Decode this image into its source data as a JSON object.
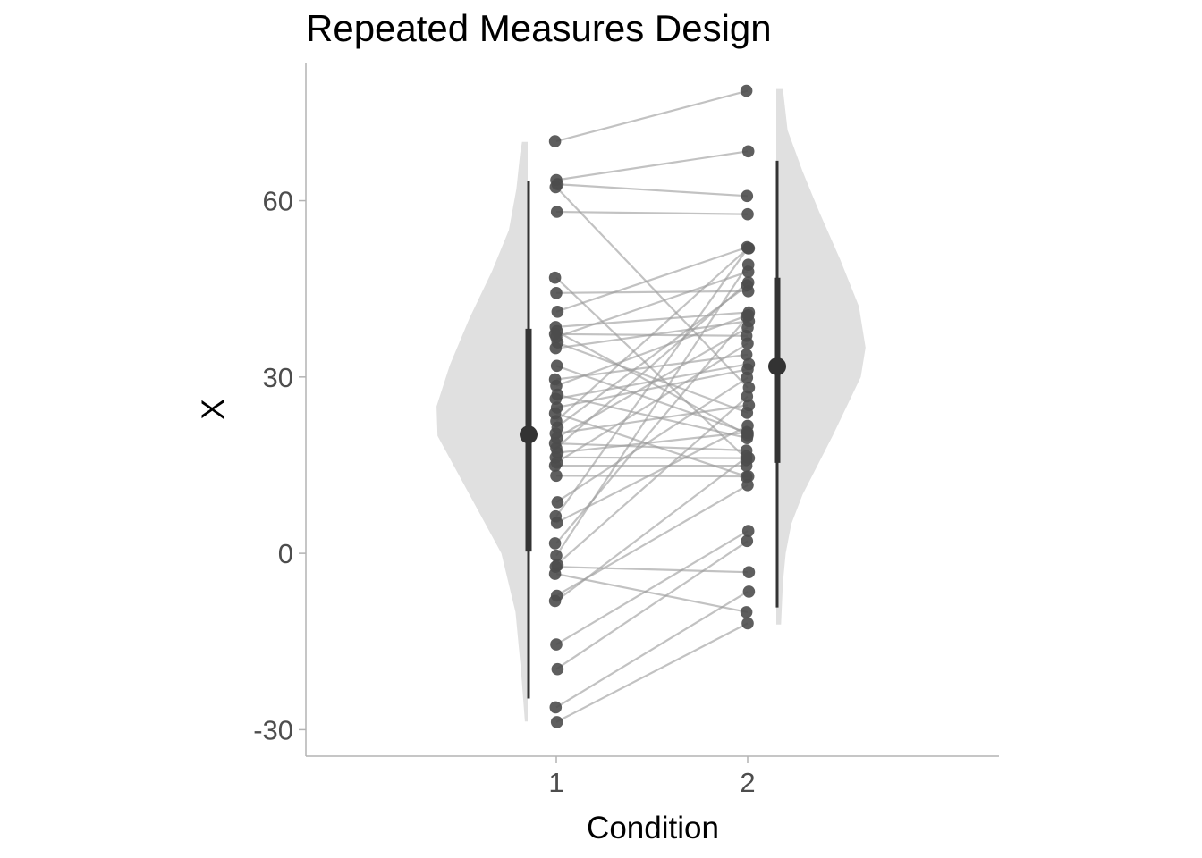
{
  "chart_data": {
    "type": "scatter",
    "subtype": "paired raincloud (half violin + boxplot + paired points)",
    "title": "Repeated Measures Design",
    "xlabel": "Condition",
    "ylabel": "X",
    "categories": [
      "1",
      "2"
    ],
    "x_tick_labels": [
      "1",
      "2"
    ],
    "y_ticks": [
      -30,
      0,
      30,
      60
    ],
    "y_tick_labels": [
      "-30",
      "0",
      "30",
      "60"
    ],
    "ylim": [
      -34.5,
      83.5
    ],
    "grid": false,
    "legend": "none",
    "colors": {
      "violin": "#e0e0e0",
      "point": "#4d4d4d",
      "line": "#9a9a9a",
      "summary": "#333333",
      "axis": "#b3b3b3"
    },
    "summary": [
      {
        "condition": "1",
        "mean": 20.2,
        "q1": 0.3,
        "q3": 38.2,
        "min": -24.7,
        "max": 63.4
      },
      {
        "condition": "2",
        "mean": 31.8,
        "q1": 15.4,
        "q3": 46.9,
        "min": -9.2,
        "max": 66.8
      }
    ],
    "violins": [
      {
        "condition": "1",
        "side": "left",
        "profile": [
          [
            -28.6,
            0.03
          ],
          [
            -20,
            0.07
          ],
          [
            -10,
            0.13
          ],
          [
            0,
            0.28
          ],
          [
            10,
            0.62
          ],
          [
            20,
            0.96
          ],
          [
            25,
            0.97
          ],
          [
            32,
            0.83
          ],
          [
            40,
            0.62
          ],
          [
            48,
            0.38
          ],
          [
            55,
            0.2
          ],
          [
            62,
            0.12
          ],
          [
            68,
            0.08
          ],
          [
            70,
            0.06
          ]
        ]
      },
      {
        "condition": "2",
        "side": "right",
        "profile": [
          [
            -12.1,
            0.05
          ],
          [
            -5,
            0.07
          ],
          [
            0,
            0.1
          ],
          [
            5,
            0.16
          ],
          [
            10,
            0.28
          ],
          [
            20,
            0.6
          ],
          [
            30,
            0.9
          ],
          [
            35,
            0.95
          ],
          [
            42,
            0.88
          ],
          [
            50,
            0.68
          ],
          [
            58,
            0.46
          ],
          [
            65,
            0.28
          ],
          [
            72,
            0.12
          ],
          [
            79,
            0.07
          ]
        ]
      }
    ],
    "pairs": [
      [
        70.1,
        78.7
      ],
      [
        63.5,
        68.4
      ],
      [
        62.8,
        60.8
      ],
      [
        62.3,
        28.2
      ],
      [
        58.1,
        57.7
      ],
      [
        46.9,
        15.9
      ],
      [
        44.3,
        44.6
      ],
      [
        41.1,
        52.1
      ],
      [
        38.5,
        41.0
      ],
      [
        37.8,
        20.1
      ],
      [
        37.3,
        37.0
      ],
      [
        36.8,
        47.9
      ],
      [
        35.9,
        23.9
      ],
      [
        34.9,
        39.5
      ],
      [
        31.9,
        20.5
      ],
      [
        29.6,
        33.8
      ],
      [
        28.5,
        40.5
      ],
      [
        27.0,
        19.6
      ],
      [
        26.3,
        32.2
      ],
      [
        24.8,
        31.3
      ],
      [
        23.8,
        13.0
      ],
      [
        22.5,
        51.9
      ],
      [
        21.4,
        45.6
      ],
      [
        20.4,
        25.2
      ],
      [
        19.6,
        38.4
      ],
      [
        18.7,
        17.5
      ],
      [
        17.9,
        46.1
      ],
      [
        17.1,
        20.6
      ],
      [
        16.3,
        16.2
      ],
      [
        15.4,
        35.7
      ],
      [
        14.9,
        14.9
      ],
      [
        13.2,
        13.1
      ],
      [
        8.7,
        29.9
      ],
      [
        6.3,
        51.9
      ],
      [
        5.2,
        21.7
      ],
      [
        1.7,
        40.3
      ],
      [
        -0.4,
        49.1
      ],
      [
        -2.0,
        26.7
      ],
      [
        -2.3,
        -3.2
      ],
      [
        -7.2,
        11.6
      ],
      [
        -8.1,
        16.5
      ],
      [
        -15.5,
        3.8
      ],
      [
        -19.7,
        2.1
      ],
      [
        -26.2,
        -6.5
      ],
      [
        -28.7,
        -11.9
      ],
      [
        -3.5,
        -10.0
      ]
    ]
  }
}
